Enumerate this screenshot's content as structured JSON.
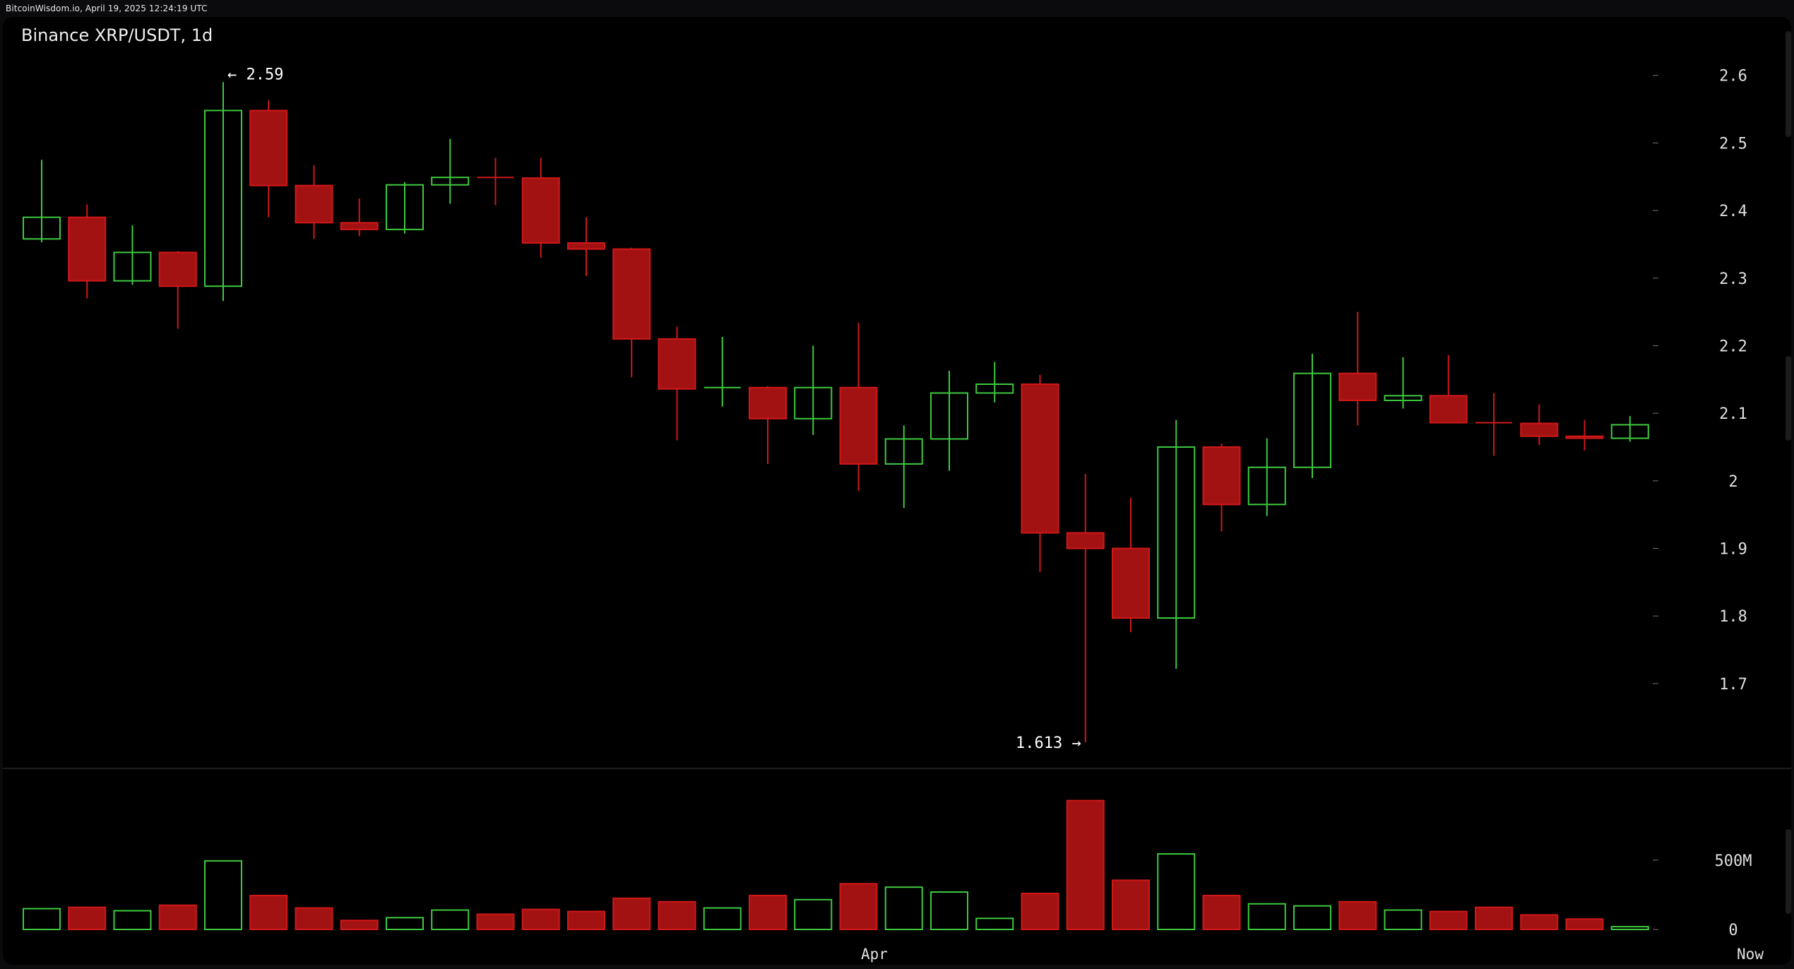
{
  "header": {
    "watermark": "BitcoinWisdom.io, April 19, 2025 12:24:19 UTC",
    "title": "Binance XRP/USDT, 1d"
  },
  "colors": {
    "background": "#000000",
    "up": "#3ec93e",
    "down": "#a31212",
    "down_border": "#d01818",
    "axis_text": "#e0e0e0",
    "annotation_text": "#ffffff"
  },
  "chart_data": {
    "type": "candlestick",
    "title": "Binance XRP/USDT, 1d",
    "x_tick_labels": [
      "Apr",
      "Now"
    ],
    "x_ticks": [
      {
        "label": "Apr",
        "index": 18.35
      },
      {
        "label": "Now",
        "index": 37.65
      }
    ],
    "price_axis": {
      "ylim": [
        1.61,
        2.63
      ],
      "ticks": [
        {
          "value": 1.7,
          "label": "1.7"
        },
        {
          "value": 1.8,
          "label": "1.8"
        },
        {
          "value": 1.9,
          "label": "1.9"
        },
        {
          "value": 2.0,
          "label": "2"
        },
        {
          "value": 2.1,
          "label": "2.1"
        },
        {
          "value": 2.2,
          "label": "2.2"
        },
        {
          "value": 2.3,
          "label": "2.3"
        },
        {
          "value": 2.4,
          "label": "2.4"
        },
        {
          "value": 2.5,
          "label": "2.5"
        },
        {
          "value": 2.6,
          "label": "2.6"
        }
      ]
    },
    "volume_axis": {
      "ylim": [
        0,
        1050
      ],
      "unit": "M",
      "ticks": [
        {
          "value": 0,
          "label": "0"
        },
        {
          "value": 500,
          "label": "500M"
        }
      ]
    },
    "annotations": [
      {
        "label": "← 2.59",
        "index": 4,
        "value": 2.59,
        "type": "high"
      },
      {
        "label": "1.613 →",
        "index": 23,
        "value": 1.613,
        "type": "low"
      }
    ],
    "candles": [
      {
        "o": 2.358,
        "h": 2.475,
        "l": 2.353,
        "c": 2.39,
        "v": 150
      },
      {
        "o": 2.39,
        "h": 2.409,
        "l": 2.27,
        "c": 2.296,
        "v": 160
      },
      {
        "o": 2.296,
        "h": 2.378,
        "l": 2.29,
        "c": 2.338,
        "v": 135
      },
      {
        "o": 2.338,
        "h": 2.34,
        "l": 2.225,
        "c": 2.288,
        "v": 175
      },
      {
        "o": 2.288,
        "h": 2.59,
        "l": 2.266,
        "c": 2.548,
        "v": 495
      },
      {
        "o": 2.548,
        "h": 2.563,
        "l": 2.39,
        "c": 2.437,
        "v": 245
      },
      {
        "o": 2.437,
        "h": 2.467,
        "l": 2.358,
        "c": 2.382,
        "v": 155
      },
      {
        "o": 2.382,
        "h": 2.418,
        "l": 2.362,
        "c": 2.372,
        "v": 65
      },
      {
        "o": 2.372,
        "h": 2.442,
        "l": 2.366,
        "c": 2.438,
        "v": 85
      },
      {
        "o": 2.438,
        "h": 2.506,
        "l": 2.41,
        "c": 2.449,
        "v": 140
      },
      {
        "o": 2.449,
        "h": 2.478,
        "l": 2.408,
        "c": 2.448,
        "v": 110
      },
      {
        "o": 2.448,
        "h": 2.478,
        "l": 2.33,
        "c": 2.352,
        "v": 145
      },
      {
        "o": 2.352,
        "h": 2.39,
        "l": 2.303,
        "c": 2.343,
        "v": 130
      },
      {
        "o": 2.343,
        "h": 2.345,
        "l": 2.153,
        "c": 2.21,
        "v": 225
      },
      {
        "o": 2.21,
        "h": 2.228,
        "l": 2.06,
        "c": 2.136,
        "v": 200
      },
      {
        "o": 2.136,
        "h": 2.213,
        "l": 2.11,
        "c": 2.138,
        "v": 155
      },
      {
        "o": 2.138,
        "h": 2.14,
        "l": 2.025,
        "c": 2.092,
        "v": 245
      },
      {
        "o": 2.092,
        "h": 2.2,
        "l": 2.068,
        "c": 2.138,
        "v": 215
      },
      {
        "o": 2.138,
        "h": 2.234,
        "l": 1.985,
        "c": 2.025,
        "v": 330
      },
      {
        "o": 2.025,
        "h": 2.082,
        "l": 1.96,
        "c": 2.062,
        "v": 305
      },
      {
        "o": 2.062,
        "h": 2.163,
        "l": 2.015,
        "c": 2.13,
        "v": 270
      },
      {
        "o": 2.13,
        "h": 2.176,
        "l": 2.116,
        "c": 2.143,
        "v": 80
      },
      {
        "o": 2.143,
        "h": 2.157,
        "l": 1.865,
        "c": 1.923,
        "v": 260
      },
      {
        "o": 1.923,
        "h": 2.01,
        "l": 1.613,
        "c": 1.9,
        "v": 930
      },
      {
        "o": 1.9,
        "h": 1.975,
        "l": 1.776,
        "c": 1.797,
        "v": 355
      },
      {
        "o": 1.797,
        "h": 2.09,
        "l": 1.722,
        "c": 2.05,
        "v": 545
      },
      {
        "o": 2.05,
        "h": 2.055,
        "l": 1.925,
        "c": 1.965,
        "v": 245
      },
      {
        "o": 1.965,
        "h": 2.063,
        "l": 1.948,
        "c": 2.02,
        "v": 185
      },
      {
        "o": 2.02,
        "h": 2.188,
        "l": 2.004,
        "c": 2.159,
        "v": 170
      },
      {
        "o": 2.159,
        "h": 2.25,
        "l": 2.082,
        "c": 2.119,
        "v": 200
      },
      {
        "o": 2.119,
        "h": 2.183,
        "l": 2.107,
        "c": 2.126,
        "v": 140
      },
      {
        "o": 2.126,
        "h": 2.186,
        "l": 2.086,
        "c": 2.086,
        "v": 130
      },
      {
        "o": 2.086,
        "h": 2.13,
        "l": 2.037,
        "c": 2.085,
        "v": 160
      },
      {
        "o": 2.085,
        "h": 2.113,
        "l": 2.053,
        "c": 2.066,
        "v": 105
      },
      {
        "o": 2.066,
        "h": 2.09,
        "l": 2.045,
        "c": 2.063,
        "v": 75
      },
      {
        "o": 2.063,
        "h": 2.096,
        "l": 2.058,
        "c": 2.083,
        "v": 20
      }
    ]
  }
}
